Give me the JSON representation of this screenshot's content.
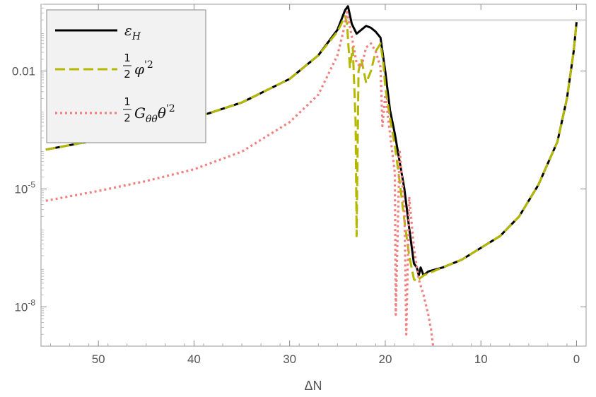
{
  "chart_data": {
    "type": "line",
    "xlabel": "ΔN",
    "ylabel": "",
    "xlim": [
      56,
      -1
    ],
    "ylim_log10": [
      -9,
      -0.3
    ],
    "y_scale": "log",
    "x_ticks": [
      50,
      40,
      30,
      20,
      10,
      0
    ],
    "x_tick_labels": [
      "50",
      "40",
      "30",
      "20",
      "10",
      "0"
    ],
    "y_ticks_log10": [
      -2,
      -5,
      -8
    ],
    "y_tick_labels": [
      "0.01",
      "10",
      "10"
    ],
    "y_tick_exponents": [
      "",
      "-5",
      "-8"
    ],
    "reference_line_log10": -0.7,
    "legend": {
      "placement": "top-left",
      "entries": [
        {
          "symbol": "ε",
          "subscript": "H"
        },
        {
          "frac_num": "1",
          "frac_den": "2",
          "symbol": "φ",
          "superscript": "'2"
        },
        {
          "frac_num": "1",
          "frac_den": "2",
          "symbol": "G",
          "subscript": "θθ",
          "symbol2": "θ",
          "superscript": "'2"
        }
      ]
    },
    "series": [
      {
        "color": "#000000",
        "style": "solid",
        "x": [
          55.5,
          50,
          45,
          40,
          35,
          30,
          27,
          25,
          24.2,
          23.9,
          23.5,
          23,
          22.5,
          22,
          21.5,
          21,
          20.5,
          20,
          19.5,
          19,
          18.5,
          18,
          17.5,
          17,
          16.7,
          16.5,
          16.3,
          16,
          15.5,
          14,
          12,
          10,
          8,
          6,
          4,
          2,
          1,
          0.3,
          0
        ],
        "y_log10": [
          -4.0,
          -3.75,
          -3.5,
          -3.2,
          -2.8,
          -2.2,
          -1.6,
          -0.95,
          -0.45,
          -0.35,
          -0.8,
          -1.05,
          -0.95,
          -0.85,
          -0.9,
          -1.0,
          -1.15,
          -2.0,
          -3.0,
          -3.6,
          -4.3,
          -5.0,
          -6.0,
          -6.9,
          -7.0,
          -7.2,
          -7.0,
          -7.2,
          -7.1,
          -7.0,
          -6.8,
          -6.5,
          -6.2,
          -5.7,
          -4.9,
          -3.8,
          -2.7,
          -1.5,
          -0.75
        ]
      },
      {
        "color": "#b5b800",
        "style": "dashed",
        "x": [
          55.5,
          50,
          45,
          40,
          35,
          30,
          27,
          25,
          24.2,
          24.0,
          23.7,
          23.4,
          23.1,
          23.0,
          22.8,
          22.5,
          22.0,
          21.5,
          21.0,
          20.5,
          20.2,
          20.0,
          19.5,
          19.0,
          18.5,
          18.0,
          17.5,
          17.0,
          16.7,
          16.5,
          16.0,
          15.5,
          14,
          12,
          10,
          8,
          6,
          4,
          2,
          1,
          0.3,
          0
        ],
        "y_log10": [
          -4.0,
          -3.75,
          -3.5,
          -3.2,
          -2.8,
          -2.2,
          -1.6,
          -1.0,
          -0.6,
          -0.8,
          -1.9,
          -1.4,
          -3.3,
          -6.2,
          -2.0,
          -1.7,
          -2.3,
          -2.0,
          -1.5,
          -1.3,
          -1.8,
          -2.4,
          -3.2,
          -3.9,
          -4.8,
          -5.8,
          -6.7,
          -7.3,
          -7.35,
          -7.3,
          -7.2,
          -7.15,
          -7.0,
          -6.8,
          -6.5,
          -6.2,
          -5.7,
          -4.9,
          -3.8,
          -2.7,
          -1.5,
          -0.75
        ]
      },
      {
        "color": "#f28080",
        "style": "dotted",
        "x": [
          55.5,
          50,
          45,
          40,
          35,
          30,
          27,
          25,
          24.3,
          24.0,
          23.6,
          23.0,
          22.5,
          22.0,
          21.5,
          21.0,
          20.5,
          20.3,
          20.0,
          19.5,
          19.0,
          18.9,
          18.5,
          18.0,
          17.8,
          17.5,
          17.0,
          16.5,
          16.0,
          15.5,
          15.2,
          15.0
        ],
        "y_log10": [
          -5.3,
          -5.05,
          -4.8,
          -4.5,
          -4.05,
          -3.3,
          -2.6,
          -1.6,
          -0.9,
          -0.5,
          -1.0,
          -1.8,
          -1.9,
          -1.4,
          -1.3,
          -1.5,
          -1.9,
          -3.4,
          -2.6,
          -3.6,
          -4.6,
          -8.2,
          -4.0,
          -5.5,
          -8.7,
          -5.2,
          -6.5,
          -7.3,
          -7.7,
          -8.2,
          -8.6,
          -9.0
        ]
      }
    ]
  }
}
